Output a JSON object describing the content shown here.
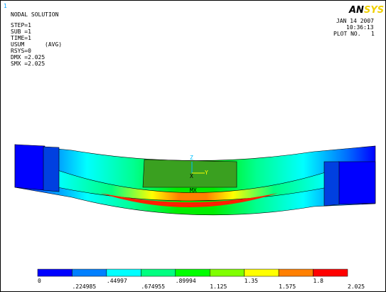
{
  "window_id": "1",
  "info": {
    "title": "NODAL SOLUTION",
    "lines": [
      "STEP=1",
      "SUB =1",
      "TIME=1",
      "USUM",
      "RSYS=0",
      "DMX =2.025",
      "SMX =2.025"
    ],
    "avg": "(AVG)"
  },
  "stamp": {
    "date": "JAN 14 2007",
    "time": "10:36:13",
    "plot": "PLOT NO.   1"
  },
  "logo": {
    "left": "AN",
    "right": "SYS"
  },
  "triad": {
    "z": "Z",
    "y": "Y",
    "x": "X"
  },
  "max_label": "MX",
  "legend": {
    "colors": [
      "#0000ff",
      "#0080ff",
      "#00ffff",
      "#00ff80",
      "#00ff00",
      "#80ff00",
      "#ffff00",
      "#ff8000",
      "#ff0000"
    ],
    "labels": [
      "0",
      ".224985",
      ".44997",
      ".674955",
      ".89994",
      "1.125",
      "1.35",
      "1.575",
      "1.8",
      "2.025"
    ]
  }
}
